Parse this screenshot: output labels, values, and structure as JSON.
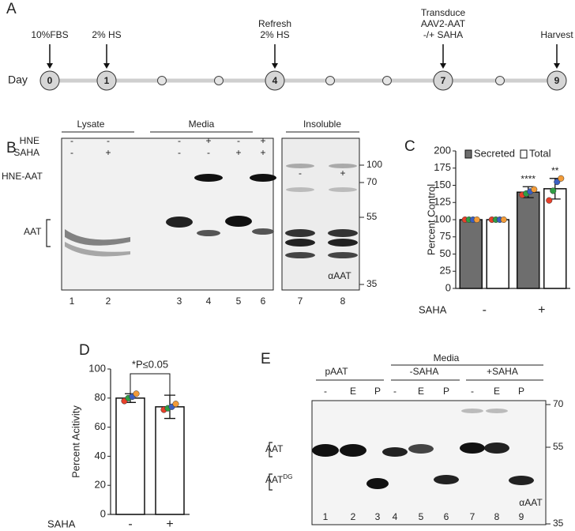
{
  "panel_labels": [
    "A",
    "B",
    "C",
    "D",
    "E"
  ],
  "timeline": {
    "axis_label": "Day",
    "days": [
      {
        "day": "0",
        "note": [
          "10%FBS"
        ]
      },
      {
        "day": "1",
        "note": [
          "2% HS"
        ]
      },
      {
        "day": "4",
        "note": [
          "Refresh",
          "2% HS"
        ]
      },
      {
        "day": "7",
        "note": [
          "Transduce",
          "AAV2-AAT",
          "-/+ SAHA"
        ]
      },
      {
        "day": "9",
        "note": [
          "Harvest"
        ]
      }
    ]
  },
  "blot_b": {
    "groups": [
      "Lysate",
      "Media",
      "Insoluble"
    ],
    "row_labels": [
      "HNE",
      "SAHA"
    ],
    "hne": [
      "-",
      "-",
      "-",
      "+",
      "-",
      "+"
    ],
    "saha": [
      "-",
      "+",
      "-",
      "-",
      "+",
      "+"
    ],
    "insoluble_saha": [
      "-",
      "+"
    ],
    "lanes": [
      "1",
      "2",
      "3",
      "4",
      "5",
      "6",
      "7",
      "8"
    ],
    "markers": [
      "100",
      "70",
      "55",
      "35"
    ],
    "band_labels": [
      "HNE-AAT",
      "AAT"
    ],
    "antibody": "αAAT"
  },
  "blot_e": {
    "group": "Media",
    "subgroups": [
      "pAAT",
      "-SAHA",
      "+SAHA"
    ],
    "treatments": [
      "-",
      "E",
      "P",
      "-",
      "E",
      "P",
      "-",
      "E",
      "P"
    ],
    "lanes": [
      "1",
      "2",
      "3",
      "4",
      "5",
      "6",
      "7",
      "8",
      "9"
    ],
    "markers": [
      "70",
      "55",
      "35"
    ],
    "band_label": "AAT",
    "band_label_dg": {
      "text": "AAT",
      "superscript": "DG"
    },
    "antibody": "αAAT"
  },
  "chart_data": [
    {
      "type": "bar",
      "ylabel": "Percent Control",
      "xlabel": "SAHA",
      "categories": [
        "-",
        "+"
      ],
      "series": [
        {
          "name": "Secreted",
          "color": "#6e6e6e",
          "values": [
            100,
            140
          ],
          "errors": [
            0,
            8
          ],
          "significance": [
            null,
            "****"
          ],
          "points": [
            [
              100,
              100,
              100,
              100
            ],
            [
              136,
              138,
              141,
              144
            ]
          ]
        },
        {
          "name": "Total",
          "color": "#ffffff",
          "values": [
            100,
            145
          ],
          "errors": [
            0,
            15
          ],
          "significance": [
            null,
            "**"
          ],
          "points": [
            [
              100,
              100,
              100,
              100
            ],
            [
              128,
              142,
              155,
              160
            ]
          ]
        }
      ],
      "point_colors": [
        "#e8402a",
        "#2f9e44",
        "#3b5fc0",
        "#f29b38"
      ],
      "ylim": [
        0,
        200
      ],
      "yticks": [
        0,
        25,
        50,
        75,
        100,
        125,
        150,
        175,
        200
      ],
      "legend": "top"
    },
    {
      "type": "bar",
      "ylabel": "Percent Acitivity",
      "xlabel": "SAHA",
      "categories": [
        "-",
        "+"
      ],
      "values": [
        80,
        74
      ],
      "errors": [
        3,
        8
      ],
      "color": "#ffffff",
      "points": [
        [
          78,
          80,
          81,
          83
        ],
        [
          72,
          73,
          74,
          76
        ]
      ],
      "point_colors": [
        "#e8402a",
        "#2f9e44",
        "#3b5fc0",
        "#f29b38"
      ],
      "annotation": "*P≤0.05",
      "ylim": [
        0,
        100
      ],
      "yticks": [
        0,
        20,
        40,
        60,
        80,
        100
      ]
    }
  ]
}
